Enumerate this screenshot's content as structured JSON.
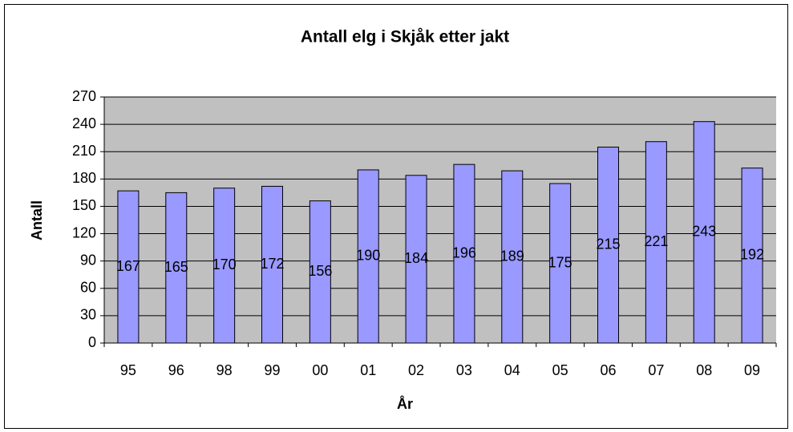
{
  "chart_data": {
    "type": "bar",
    "title": "Antall elg i Skjåk etter jakt",
    "x_label": "År",
    "y_label": "Antall",
    "categories": [
      "95",
      "96",
      "98",
      "99",
      "00",
      "01",
      "02",
      "03",
      "04",
      "05",
      "06",
      "07",
      "08",
      "09"
    ],
    "values": [
      167,
      165,
      170,
      172,
      156,
      190,
      184,
      196,
      189,
      175,
      215,
      221,
      243,
      192
    ],
    "color": "#9999ff",
    "ylim": [
      0,
      270
    ],
    "yticks": [
      0,
      30,
      60,
      90,
      120,
      150,
      180,
      210,
      240,
      270
    ],
    "grid": true
  }
}
